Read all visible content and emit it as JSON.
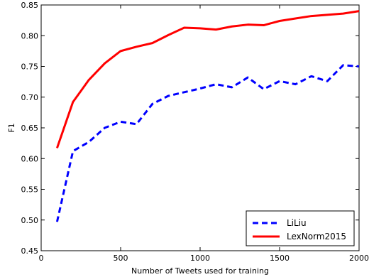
{
  "chart_data": {
    "type": "line",
    "xlabel": "Number of Tweets used for training",
    "ylabel": "F1",
    "xlim": [
      0,
      2000
    ],
    "ylim": [
      0.45,
      0.85
    ],
    "xticks": [
      0,
      500,
      1000,
      1500,
      2000
    ],
    "yticks": [
      0.45,
      0.5,
      0.55,
      0.6,
      0.65,
      0.7,
      0.75,
      0.8,
      0.85
    ],
    "xtick_labels": [
      "0",
      "500",
      "1000",
      "1500",
      "2000"
    ],
    "ytick_labels": [
      "0.45",
      "0.50",
      "0.55",
      "0.60",
      "0.65",
      "0.70",
      "0.75",
      "0.80",
      "0.85"
    ],
    "grid": false,
    "legend": "bottom-right",
    "x": [
      100,
      200,
      300,
      400,
      500,
      600,
      700,
      800,
      900,
      1000,
      1100,
      1200,
      1300,
      1400,
      1500,
      1600,
      1700,
      1800,
      1900,
      2000
    ],
    "series": [
      {
        "name": "LiLiu",
        "color": "#0000ff",
        "dash": "dashed",
        "values": [
          0.497,
          0.612,
          0.627,
          0.65,
          0.66,
          0.656,
          0.689,
          0.702,
          0.708,
          0.714,
          0.721,
          0.716,
          0.732,
          0.713,
          0.726,
          0.721,
          0.734,
          0.726,
          0.752,
          0.75
        ]
      },
      {
        "name": "LexNorm2015",
        "color": "#ff0000",
        "dash": "solid",
        "values": [
          0.617,
          0.692,
          0.728,
          0.755,
          0.775,
          0.782,
          0.788,
          0.801,
          0.813,
          0.812,
          0.81,
          0.815,
          0.818,
          0.817,
          0.824,
          0.828,
          0.832,
          0.834,
          0.836,
          0.84
        ]
      }
    ]
  }
}
